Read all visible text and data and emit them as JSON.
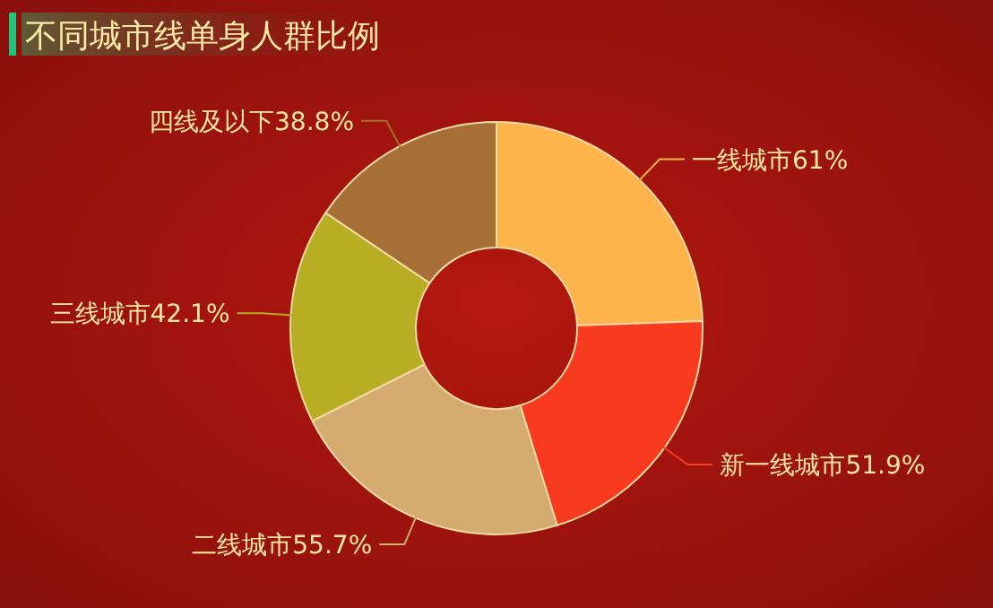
{
  "chart_data": {
    "type": "donut",
    "title": "不同城市线单身人群比例",
    "categories": [
      "一线城市",
      "新一线城市",
      "二线城市",
      "三线城市",
      "四线及以下"
    ],
    "values": [
      61,
      51.9,
      55.7,
      42.1,
      38.8
    ],
    "colors": [
      "#fdb44b",
      "#f83b1e",
      "#d4ab6e",
      "#b8ae24",
      "#a66f35"
    ],
    "value_labels": [
      "61%",
      "51.9%",
      "55.7%",
      "42.1%",
      "38.8%"
    ]
  }
}
